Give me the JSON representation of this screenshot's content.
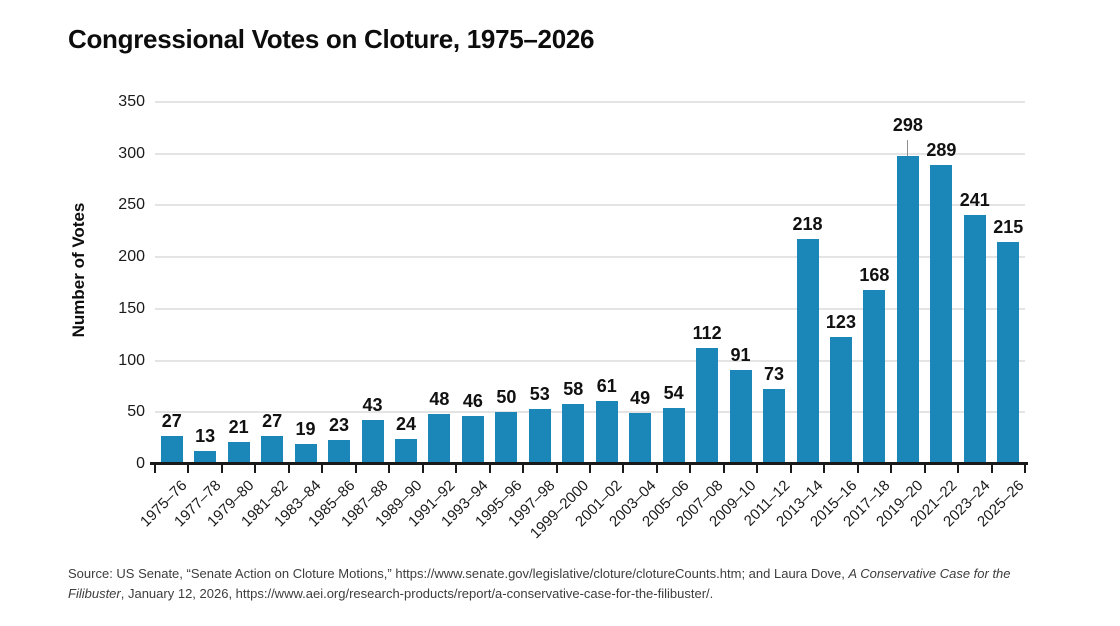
{
  "title": "Congressional Votes on Cloture, 1975–2026",
  "chart_data": {
    "type": "bar",
    "title": "Congressional Votes on Cloture, 1975–2026",
    "categories": [
      "1975–76",
      "1977–78",
      "1979–80",
      "1981–82",
      "1983–84",
      "1985–86",
      "1987–88",
      "1989–90",
      "1991–92",
      "1993–94",
      "1995–96",
      "1997–98",
      "1999–2000",
      "2001–02",
      "2003–04",
      "2005–06",
      "2007–08",
      "2009–10",
      "2011–12",
      "2013–14",
      "2015–16",
      "2017–18",
      "2019–20",
      "2021–22",
      "2023–24",
      "2025–26"
    ],
    "values": [
      27,
      13,
      21,
      27,
      19,
      23,
      43,
      24,
      48,
      46,
      50,
      53,
      58,
      61,
      49,
      54,
      112,
      91,
      73,
      218,
      123,
      168,
      298,
      289,
      241,
      215
    ],
    "xlabel": "",
    "ylabel": "Number of Votes",
    "yticks": [
      0,
      50,
      100,
      150,
      200,
      250,
      300,
      350
    ],
    "ylim": [
      0,
      350
    ],
    "bar_color": "#1b87b9",
    "grid": "horizontal",
    "legend": "none",
    "value_labels": true,
    "label_leader": {
      "index": 22,
      "offset": 16
    }
  },
  "source": {
    "part1": "Source: US Senate, “Senate Action on Cloture Motions,” https://www.senate.gov/legislative/cloture/clotureCounts.htm; and Laura Dove, ",
    "part2_italic": "A Conservative Case for the Filibuster",
    "part3": ", January 12, 2026, https://www.aei.org/research-products/report/a-conservative-case-for-the-filibuster/."
  }
}
